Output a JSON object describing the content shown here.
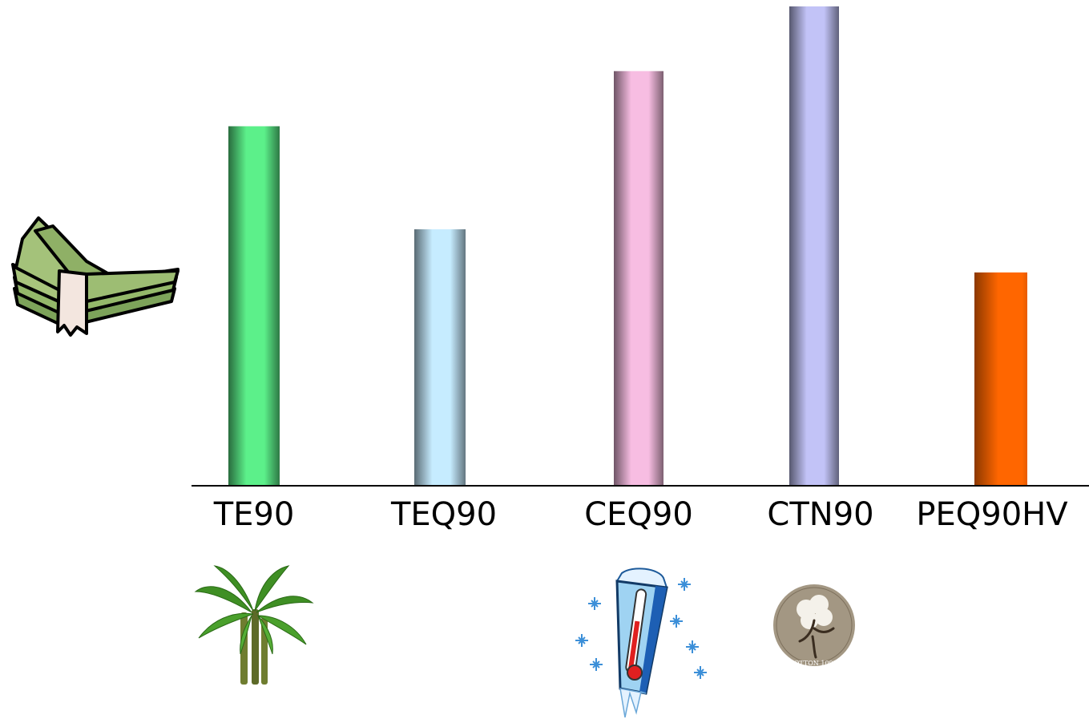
{
  "chart_data": {
    "type": "bar",
    "categories": [
      "TE90",
      "TEQ90",
      "CEQ90",
      "CTN90",
      "PEQ90HV"
    ],
    "values": [
      75,
      53.5,
      86.5,
      100,
      44.5
    ],
    "ylim": [
      0,
      100
    ],
    "grid": false,
    "axis_units": "relative cost (axis unlabeled)",
    "colors": [
      "#5cf08a",
      "#c6ecff",
      "#f7bde2",
      "#c2c3f7",
      "#ff6600"
    ],
    "icons": {
      "y_axis": "money-stack-icon",
      "TE90": "palm-tree-icon",
      "CEQ90": "cold-thermometer-icon",
      "CTN90": "cotton-badge-icon"
    },
    "cotton_badge_text": "COTTON 100%"
  }
}
